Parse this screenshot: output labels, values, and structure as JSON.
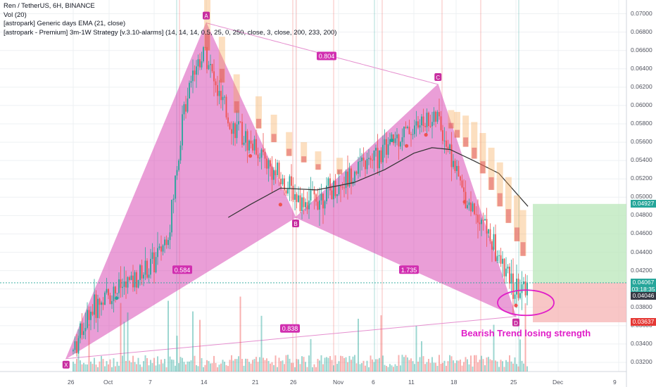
{
  "legend": {
    "line1": "Ren / TetherUS, 6H, BINANCE",
    "line2": "Vol (20)",
    "line3": "[astropark] Generic days EMA (21, close)",
    "line4": "[astropark - Premium] 3m-1W Strategy [v.3.10-alarms] (14, 14, 14, 0.5, 25, 0, 250, close, 3, close, 200, 233, 200)"
  },
  "annotation": "Bearish Trend losing strength",
  "price_tags": [
    {
      "value": "0.04927",
      "color": "#26a69a"
    },
    {
      "value": "0.04067",
      "color": "#26a69a"
    },
    {
      "value": "03:18:35",
      "color": "#26a69a"
    },
    {
      "value": "0.04046",
      "color": "#363a45"
    },
    {
      "value": "0.03637",
      "color": "#e53935"
    }
  ],
  "colors": {
    "up": "#26a69a",
    "down": "#ef5350",
    "pattern": "#d94fb8",
    "ema": "#333333",
    "annotation": "#e01ec8"
  },
  "chart_data": {
    "type": "candlestick",
    "title": "Ren / TetherUS, 6H, BINANCE",
    "y_ticks": [
      "0.07000",
      "0.06800",
      "0.06600",
      "0.06400",
      "0.06200",
      "0.06000",
      "0.05800",
      "0.05600",
      "0.05400",
      "0.05200",
      "0.05000",
      "0.04800",
      "0.04600",
      "0.04400",
      "0.04200",
      "0.04000",
      "0.03800",
      "0.03600",
      "0.03400",
      "0.03200"
    ],
    "x_ticks": [
      "26",
      "Oct",
      "7",
      "14",
      "21",
      "26",
      "Nov",
      "6",
      "11",
      "18",
      "25",
      "Dec",
      "9"
    ],
    "ylim": [
      0.031,
      0.0715
    ],
    "price_path": [
      [
        "Sep 26",
        0.0332
      ],
      [
        "Sep 28",
        0.0372
      ],
      [
        "Oct 1",
        0.0394
      ],
      [
        "Oct 4",
        0.0408
      ],
      [
        "Oct 7",
        0.0428
      ],
      [
        "Oct 9",
        0.0462
      ],
      [
        "Oct 11",
        0.0595
      ],
      [
        "Oct 12",
        0.0638
      ],
      [
        "Oct 14",
        0.066
      ],
      [
        "Oct 15",
        0.0625
      ],
      [
        "Oct 17",
        0.0584
      ],
      [
        "Oct 19",
        0.0565
      ],
      [
        "Oct 21",
        0.0552
      ],
      [
        "Oct 23",
        0.0528
      ],
      [
        "Oct 25",
        0.051
      ],
      [
        "Oct 27",
        0.0495
      ],
      [
        "Oct 29",
        0.05
      ],
      [
        "Nov 1",
        0.051
      ],
      [
        "Nov 3",
        0.053
      ],
      [
        "Nov 5",
        0.0538
      ],
      [
        "Nov 7",
        0.0552
      ],
      [
        "Nov 9",
        0.0568
      ],
      [
        "Nov 11",
        0.0575
      ],
      [
        "Nov 13",
        0.0584
      ],
      [
        "Nov 15",
        0.0585
      ],
      [
        "Nov 17",
        0.055
      ],
      [
        "Nov 19",
        0.05
      ],
      [
        "Nov 21",
        0.0478
      ],
      [
        "Nov 23",
        0.0432
      ],
      [
        "Nov 25",
        0.0396
      ],
      [
        "Nov 27",
        0.0404
      ]
    ],
    "ema_path": [
      [
        "Oct 17",
        0.0478
      ],
      [
        "Oct 20",
        0.0492
      ],
      [
        "Oct 24",
        0.051
      ],
      [
        "Oct 29",
        0.0508
      ],
      [
        "Nov 3",
        0.0516
      ],
      [
        "Nov 7",
        0.053
      ],
      [
        "Nov 11",
        0.0548
      ],
      [
        "Nov 14",
        0.0554
      ],
      [
        "Nov 17",
        0.0552
      ],
      [
        "Nov 20",
        0.054
      ],
      [
        "Nov 23",
        0.0526
      ],
      [
        "Nov 27",
        0.049
      ]
    ],
    "pattern": {
      "points": [
        {
          "label": "X",
          "date": "Sep 25",
          "price": 0.0324
        },
        {
          "label": "A",
          "date": "Oct 14",
          "price": 0.069
        },
        {
          "label": "B",
          "date": "Oct 26",
          "price": 0.0478
        },
        {
          "label": "C",
          "date": "Nov 15",
          "price": 0.0623
        },
        {
          "label": "D",
          "date": "Nov 25",
          "price": 0.037
        }
      ],
      "ratios": [
        {
          "value": "0.584",
          "between": "XB"
        },
        {
          "value": "0.804",
          "between": "AC"
        },
        {
          "value": "1.735",
          "between": "BD"
        },
        {
          "value": "0.838",
          "between": "XD"
        }
      ]
    },
    "target_zone": {
      "top": 0.04927,
      "bottom": 0.04067,
      "color": "green"
    },
    "stop_zone": {
      "top": 0.04067,
      "bottom": 0.03637,
      "color": "red"
    }
  }
}
